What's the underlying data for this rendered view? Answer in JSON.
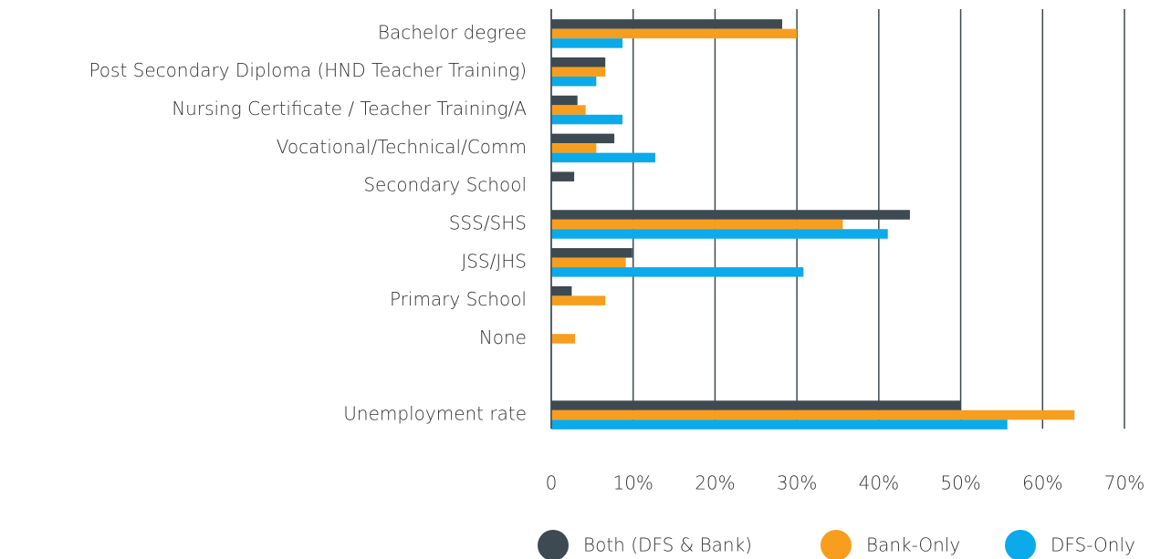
{
  "chart_data": {
    "type": "hbar",
    "categories": [
      "Bachelor degree",
      "Post Secondary Diploma (HND Teacher Training)",
      "Nursing Certificate / Teacher Training/A",
      "Vocational/Technical/Comm",
      "Secondary School",
      "SSS/SHS",
      "JSS/JHS",
      "Primary School",
      "None",
      null,
      "Unemployment rate"
    ],
    "series": [
      {
        "name": "Both (DFS & Bank)",
        "color": "#3d4a52",
        "values": [
          28.2,
          6.6,
          3.2,
          7.7,
          2.8,
          43.8,
          9.9,
          2.5,
          0,
          null,
          50
        ]
      },
      {
        "name": "Bank-Only",
        "color": "#f89e1e",
        "values": [
          30,
          6.6,
          4.2,
          5.5,
          0,
          35.6,
          9.1,
          6.6,
          2.9,
          null,
          63.9
        ]
      },
      {
        "name": "DFS-Only",
        "color": "#0aaaeb",
        "values": [
          8.7,
          5.5,
          8.7,
          12.7,
          0,
          41.1,
          30.8,
          0,
          0,
          null,
          55.7
        ]
      }
    ],
    "xlim": [
      0,
      70
    ],
    "xticks": [
      0,
      {
        "value": 10,
        "label": "10%"
      },
      {
        "value": 20,
        "label": "20%"
      },
      {
        "value": 30,
        "label": "30%"
      },
      {
        "value": 40,
        "label": "40%"
      },
      {
        "value": 50,
        "label": "50%"
      },
      {
        "value": 60,
        "label": "60%"
      },
      {
        "value": 70,
        "label": "70%"
      }
    ],
    "grid": true,
    "legend": "bottom"
  }
}
